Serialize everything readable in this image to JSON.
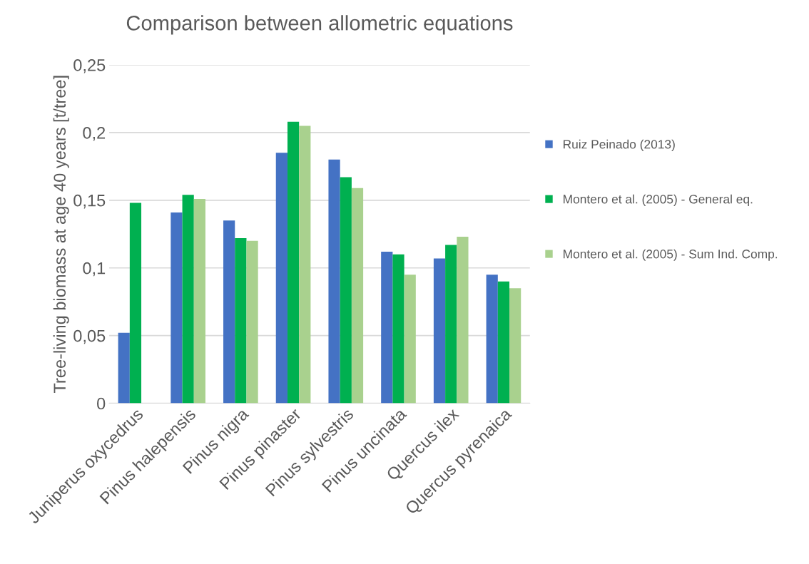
{
  "chart_data": {
    "type": "bar",
    "title": "Comparison between allometric equations",
    "ylabel": "Tree-living biomass at age 40 years [t/tree]",
    "categories": [
      "Juniperus oxycedrus",
      "Pinus halepensis",
      "Pinus nigra",
      "Pinus pinaster",
      "Pinus sylvestris",
      "Pinus uncinata",
      "Quercus ilex",
      "Quercus pyrenaica"
    ],
    "series": [
      {
        "name": "Ruiz Peinado (2013)",
        "color": "#4472c4",
        "values": [
          0.052,
          0.141,
          0.135,
          0.185,
          0.18,
          0.112,
          0.107,
          0.095
        ]
      },
      {
        "name": "Montero et al. (2005) - General eq.",
        "color": "#00b050",
        "values": [
          0.148,
          0.154,
          0.122,
          0.208,
          0.167,
          0.11,
          0.117,
          0.09
        ]
      },
      {
        "name": "Montero et al. (2005) - Sum Ind. Comp.",
        "color": "#a9d18e",
        "values": [
          null,
          0.151,
          0.12,
          0.205,
          0.159,
          0.095,
          0.123,
          0.085
        ]
      }
    ],
    "ylim": [
      0,
      0.25
    ],
    "yticks": [
      {
        "value": 0,
        "label": "0"
      },
      {
        "value": 0.05,
        "label": "0,05"
      },
      {
        "value": 0.1,
        "label": "0,1"
      },
      {
        "value": 0.15,
        "label": "0,15"
      },
      {
        "value": 0.2,
        "label": "0,2"
      },
      {
        "value": 0.25,
        "label": "0,25"
      }
    ],
    "grid": "y",
    "legend": "right"
  }
}
